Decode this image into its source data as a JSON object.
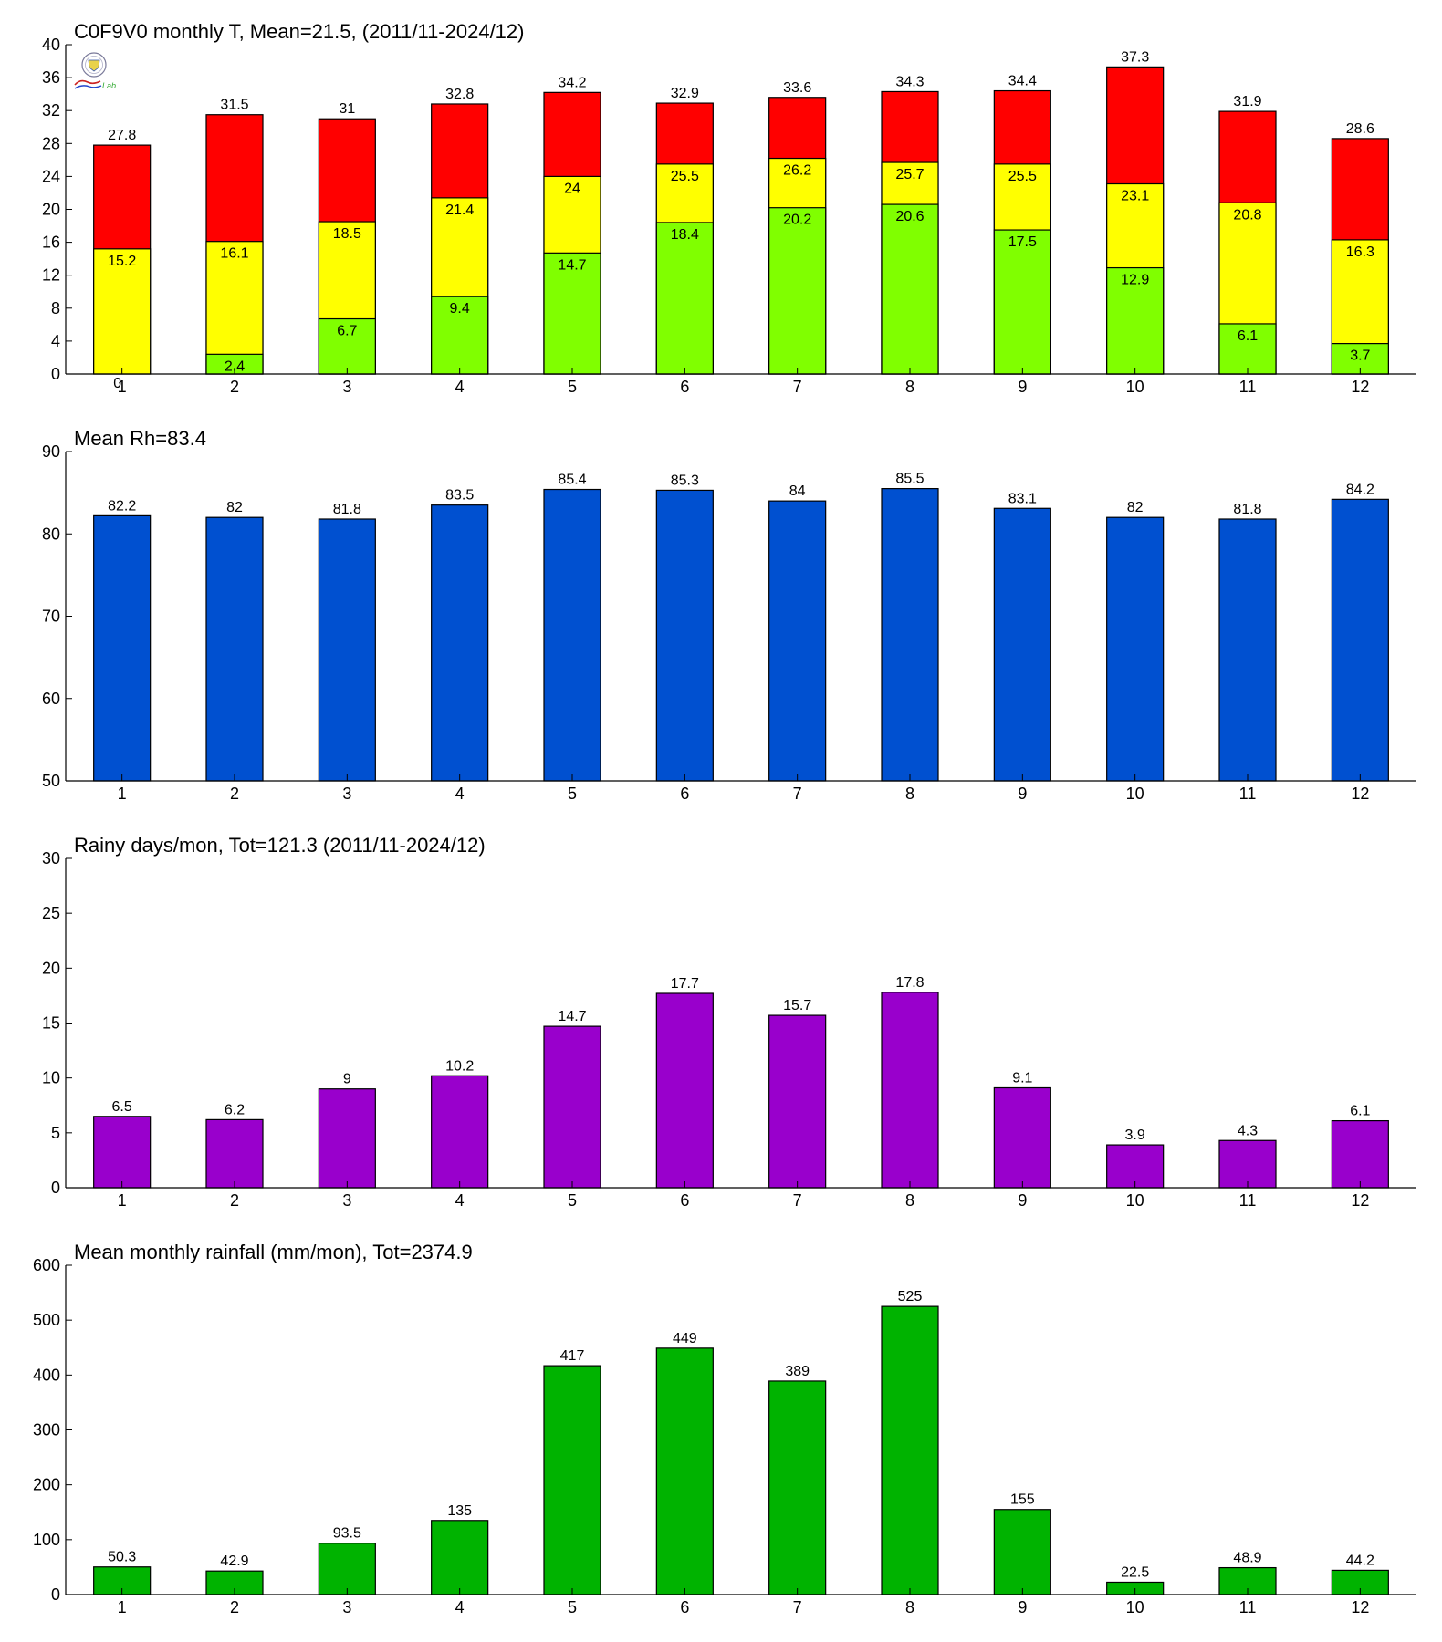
{
  "colors": {
    "temp_max": "#ff0000",
    "temp_mean": "#ffff00",
    "temp_min": "#80ff00",
    "rh": "#0050d0",
    "rainy_days": "#9900cc",
    "rainfall": "#00b300",
    "axis": "#000000",
    "background": "#ffffff"
  },
  "logo": {
    "icon": "lab-logo-icon",
    "text": "Lab."
  },
  "chart_data": [
    {
      "type": "bar",
      "stacked": "overlay",
      "title": "C0F9V0 monthly T, Mean=21.5, (2011/11-2024/12)",
      "categories": [
        "1",
        "2",
        "3",
        "4",
        "5",
        "6",
        "7",
        "8",
        "9",
        "10",
        "11",
        "12"
      ],
      "ylim": [
        0,
        40
      ],
      "yticks": [
        "0",
        "4",
        "8",
        "12",
        "16",
        "20",
        "24",
        "28",
        "32",
        "36",
        "40"
      ],
      "series": [
        {
          "values": [
            27.8,
            31.5,
            31,
            32.8,
            34.2,
            32.9,
            33.6,
            34.3,
            34.4,
            37.3,
            31.9,
            28.6
          ],
          "labels": [
            "27.8",
            "31.5",
            "31",
            "32.8",
            "34.2",
            "32.9",
            "33.6",
            "34.3",
            "34.4",
            "37.3",
            "31.9",
            "28.6"
          ]
        },
        {
          "values": [
            15.2,
            16.1,
            18.5,
            21.4,
            24,
            25.5,
            26.2,
            25.7,
            25.5,
            23.1,
            20.8,
            16.3
          ],
          "labels": [
            "15.2",
            "16.1",
            "18.5",
            "21.4",
            "24",
            "25.5",
            "26.2",
            "25.7",
            "25.5",
            "23.1",
            "20.8",
            "16.3"
          ]
        },
        {
          "values": [
            0,
            2.4,
            6.7,
            9.4,
            14.7,
            18.4,
            20.2,
            20.6,
            17.5,
            12.9,
            6.1,
            3.7
          ],
          "labels": [
            "0",
            "2.4",
            "6.7",
            "9.4",
            "14.7",
            "18.4",
            "20.2",
            "20.6",
            "17.5",
            "12.9",
            "6.1",
            "3.7"
          ]
        }
      ]
    },
    {
      "type": "bar",
      "title": "Mean Rh=83.4",
      "categories": [
        "1",
        "2",
        "3",
        "4",
        "5",
        "6",
        "7",
        "8",
        "9",
        "10",
        "11",
        "12"
      ],
      "ylim": [
        50,
        90
      ],
      "yticks": [
        "50",
        "60",
        "70",
        "80",
        "90"
      ],
      "values": [
        82.2,
        82,
        81.8,
        83.5,
        85.4,
        85.3,
        84,
        85.5,
        83.1,
        82,
        81.8,
        84.2
      ],
      "labels": [
        "82.2",
        "82",
        "81.8",
        "83.5",
        "85.4",
        "85.3",
        "84",
        "85.5",
        "83.1",
        "82",
        "81.8",
        "84.2"
      ]
    },
    {
      "type": "bar",
      "title": "Rainy days/mon, Tot=121.3 (2011/11-2024/12)",
      "categories": [
        "1",
        "2",
        "3",
        "4",
        "5",
        "6",
        "7",
        "8",
        "9",
        "10",
        "11",
        "12"
      ],
      "ylim": [
        0,
        30
      ],
      "yticks": [
        "0",
        "5",
        "10",
        "15",
        "20",
        "25",
        "30"
      ],
      "values": [
        6.5,
        6.2,
        9,
        10.2,
        14.7,
        17.7,
        15.7,
        17.8,
        9.1,
        3.9,
        4.3,
        6.1
      ],
      "labels": [
        "6.5",
        "6.2",
        "9",
        "10.2",
        "14.7",
        "17.7",
        "15.7",
        "17.8",
        "9.1",
        "3.9",
        "4.3",
        "6.1"
      ]
    },
    {
      "type": "bar",
      "title": "Mean monthly rainfall (mm/mon), Tot=2374.9",
      "categories": [
        "1",
        "2",
        "3",
        "4",
        "5",
        "6",
        "7",
        "8",
        "9",
        "10",
        "11",
        "12"
      ],
      "ylim": [
        0,
        600
      ],
      "yticks": [
        "0",
        "100",
        "200",
        "300",
        "400",
        "500",
        "600"
      ],
      "values": [
        50.3,
        42.9,
        93.5,
        135,
        417,
        449,
        389,
        525,
        155,
        22.5,
        48.9,
        44.2
      ],
      "labels": [
        "50.3",
        "42.9",
        "93.5",
        "135",
        "417",
        "449",
        "389",
        "525",
        "155",
        "22.5",
        "48.9",
        "44.2"
      ]
    }
  ]
}
